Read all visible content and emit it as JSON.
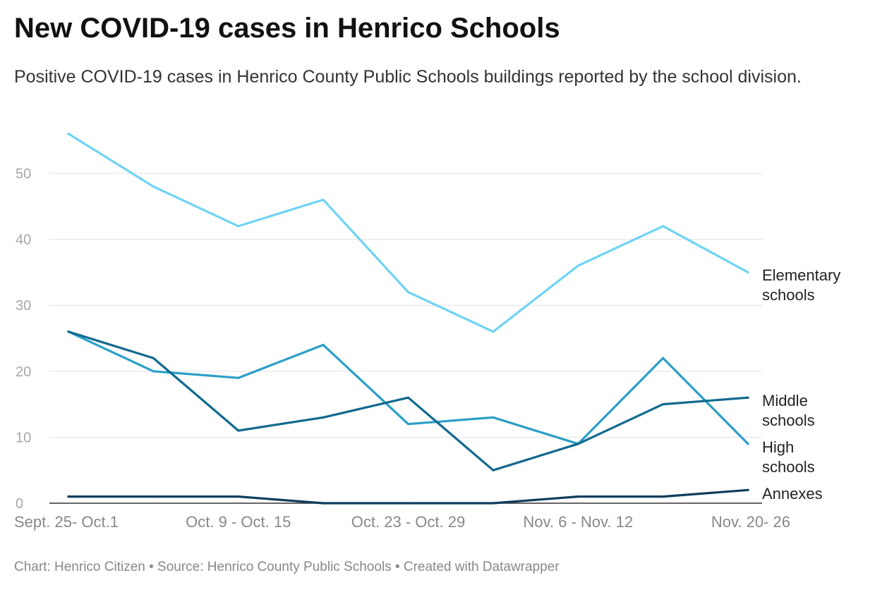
{
  "header": {
    "title": "New COVID-19 cases in Henrico Schools",
    "subtitle": "Positive COVID-19 cases in Henrico County Public Schools buildings reported by the school division."
  },
  "footer": {
    "text": "Chart: Henrico Citizen • Source: Henrico County Public Schools • Created with Datawrapper"
  },
  "chart_data": {
    "type": "line",
    "title": "New COVID-19 cases in Henrico Schools",
    "subtitle": "Positive COVID-19 cases in Henrico County Public Schools buildings reported by the school division.",
    "x_tick_labels": [
      "Sept. 25- Oct.1",
      "Oct. 9 - Oct. 15",
      "Oct. 23 - Oct. 29",
      "Nov. 6 - Nov. 12",
      "Nov. 20- 26"
    ],
    "x_tick_positions": [
      0,
      2,
      4,
      6,
      8
    ],
    "point_count": 9,
    "ylim": [
      0,
      57
    ],
    "yticks": [
      0,
      10,
      20,
      30,
      40,
      50
    ],
    "grid": true,
    "legend": "direct labels at right end of lines",
    "series": [
      {
        "name": "Elementary schools",
        "label_lines": [
          "Elementary",
          "schools"
        ],
        "color": "#6fd3f5",
        "values": [
          56,
          48,
          42,
          46,
          32,
          26,
          36,
          42,
          35
        ]
      },
      {
        "name": "High schools",
        "label_lines": [
          "High",
          "schools"
        ],
        "color": "#2a9fc7",
        "values": [
          26,
          20,
          19,
          24,
          12,
          13,
          9,
          22,
          9
        ]
      },
      {
        "name": "Middle schools",
        "label_lines": [
          "Middle",
          "schools"
        ],
        "color": "#11698e",
        "values": [
          26,
          22,
          11,
          13,
          16,
          5,
          9,
          15,
          16
        ]
      },
      {
        "name": "Annexes",
        "label_lines": [
          "Annexes"
        ],
        "color": "#0d3d5c",
        "values": [
          1,
          1,
          1,
          0,
          0,
          0,
          1,
          1,
          2
        ]
      }
    ]
  }
}
